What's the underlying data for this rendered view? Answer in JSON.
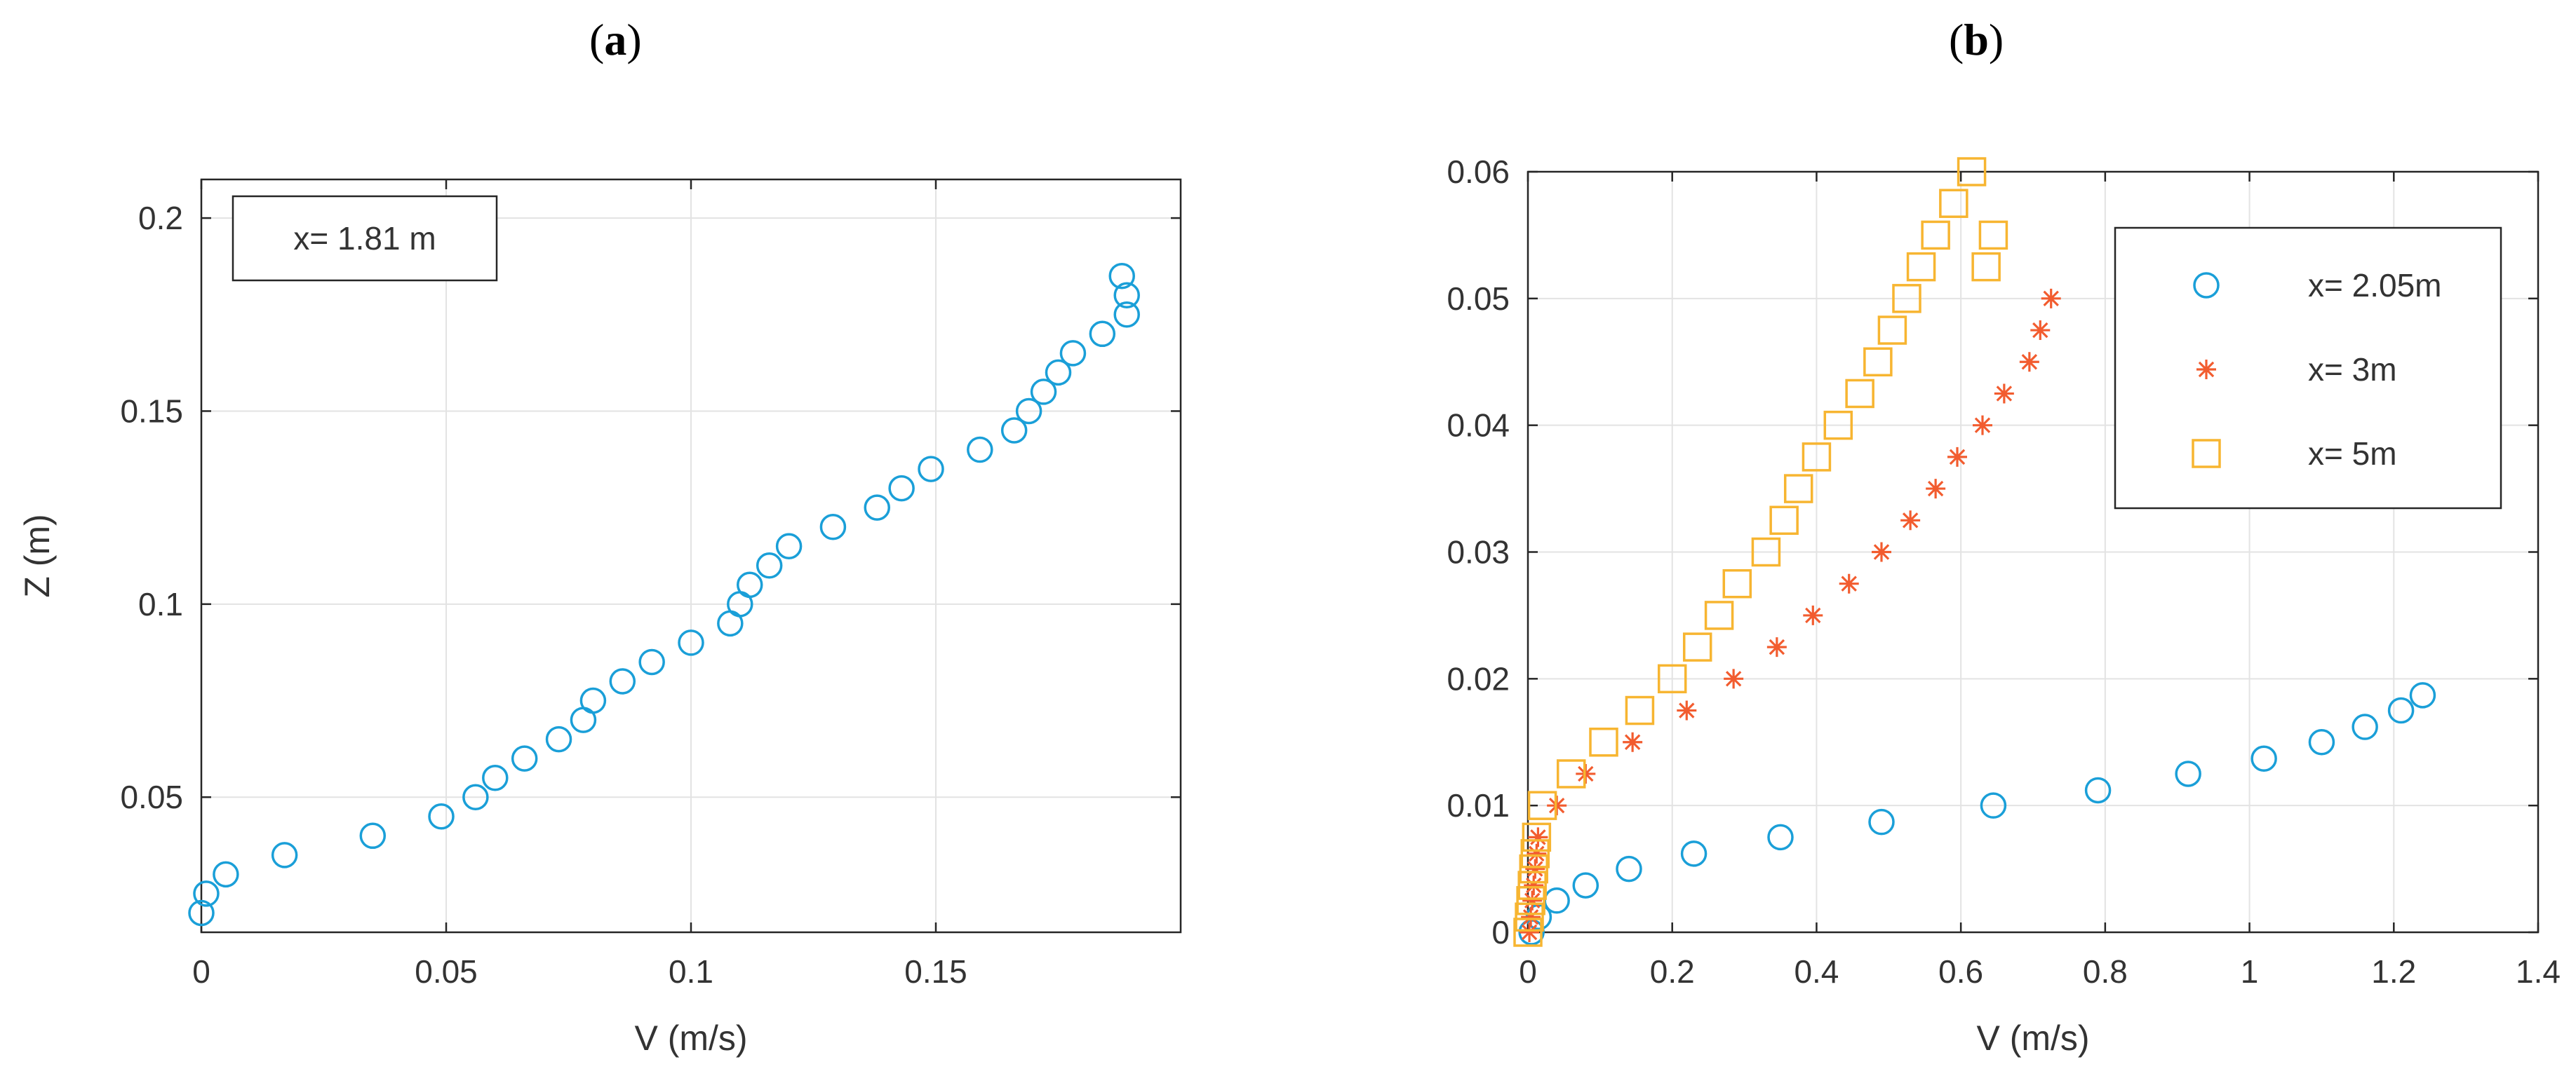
{
  "panels": {
    "a": {
      "label": "a"
    },
    "b": {
      "label": "b"
    }
  },
  "colors": {
    "series_blue": "#1a9fd8",
    "series_red": "#f25c2f",
    "series_yellow": "#f7b531",
    "grid": "#e3e3e3",
    "axis": "#262626"
  },
  "chart_data": [
    {
      "id": "a",
      "type": "scatter",
      "xlabel": "V (m/s)",
      "ylabel": "Z (m)",
      "xlim": [
        0,
        0.2
      ],
      "ylim": [
        0.015,
        0.21
      ],
      "xticks": [
        0,
        0.05,
        0.1,
        0.15
      ],
      "xtick_labels": [
        "0",
        "0.05",
        "0.1",
        "0.15"
      ],
      "yticks": [
        0.05,
        0.1,
        0.15,
        0.2
      ],
      "ytick_labels": [
        "0.05",
        "0.1",
        "0.15",
        "0.2"
      ],
      "grid": true,
      "annotation": "x= 1.81 m",
      "annotation_position": "top-left",
      "series": [
        {
          "marker": "circle",
          "color": "#1a9fd8",
          "x": [
            0.0,
            0.001,
            0.005,
            0.017,
            0.035,
            0.049,
            0.056,
            0.06,
            0.066,
            0.073,
            0.078,
            0.08,
            0.086,
            0.092,
            0.1,
            0.108,
            0.11,
            0.112,
            0.116,
            0.12,
            0.129,
            0.138,
            0.143,
            0.149,
            0.159,
            0.166,
            0.169,
            0.172,
            0.175,
            0.178,
            0.184,
            0.188,
            0.189,
            0.189
          ],
          "y": [
            0.02,
            0.025,
            0.03,
            0.035,
            0.04,
            0.045,
            0.05,
            0.055,
            0.06,
            0.065,
            0.07,
            0.075,
            0.08,
            0.085,
            0.09,
            0.095,
            0.1,
            0.105,
            0.11,
            0.115,
            0.12,
            0.125,
            0.13,
            0.135,
            0.14,
            0.145,
            0.15,
            0.155,
            0.16,
            0.165,
            0.17,
            0.185,
            0.18,
            0.175
          ]
        }
      ]
    },
    {
      "id": "b",
      "type": "scatter",
      "xlabel": "V (m/s)",
      "ylabel": "",
      "xlim": [
        0,
        1.4
      ],
      "ylim": [
        0,
        0.06
      ],
      "xticks": [
        0,
        0.2,
        0.4,
        0.6,
        0.8,
        1.0,
        1.2,
        1.4
      ],
      "xtick_labels": [
        "0",
        "0.2",
        "0.4",
        "0.6",
        "0.8",
        "1",
        "1.2",
        "1.4"
      ],
      "yticks": [
        0,
        0.01,
        0.02,
        0.03,
        0.04,
        0.05,
        0.06
      ],
      "ytick_labels": [
        "0",
        "0.01",
        "0.02",
        "0.03",
        "0.04",
        "0.05",
        "0.06"
      ],
      "grid": true,
      "legend_position": "top-right",
      "series": [
        {
          "name": "x= 2.05m",
          "marker": "circle",
          "color": "#1a9fd8",
          "x": [
            0.005,
            0.015,
            0.04,
            0.08,
            0.14,
            0.23,
            0.35,
            0.49,
            0.645,
            0.79,
            0.915,
            1.02,
            1.1,
            1.16,
            1.21,
            1.24
          ],
          "y": [
            0.0,
            0.0012,
            0.0025,
            0.0037,
            0.005,
            0.0062,
            0.0075,
            0.0087,
            0.01,
            0.0112,
            0.0125,
            0.0137,
            0.015,
            0.0162,
            0.0175,
            0.0187
          ]
        },
        {
          "name": "x= 3m",
          "marker": "asterisk",
          "color": "#f25c2f",
          "x": [
            0.002,
            0.004,
            0.006,
            0.008,
            0.01,
            0.012,
            0.014,
            0.04,
            0.08,
            0.145,
            0.22,
            0.285,
            0.345,
            0.395,
            0.445,
            0.49,
            0.53,
            0.565,
            0.595,
            0.63,
            0.66,
            0.695,
            0.71,
            0.725
          ],
          "y": [
            0.0,
            0.0012,
            0.0025,
            0.0037,
            0.005,
            0.0062,
            0.0075,
            0.01,
            0.0125,
            0.015,
            0.0175,
            0.02,
            0.0225,
            0.025,
            0.0275,
            0.03,
            0.0325,
            0.035,
            0.0375,
            0.04,
            0.0425,
            0.045,
            0.0475,
            0.05
          ]
        },
        {
          "name": "x= 5m",
          "marker": "square",
          "color": "#f7b531",
          "x": [
            0.0,
            0.002,
            0.004,
            0.006,
            0.008,
            0.01,
            0.012,
            0.02,
            0.06,
            0.105,
            0.155,
            0.2,
            0.235,
            0.265,
            0.29,
            0.33,
            0.355,
            0.375,
            0.4,
            0.43,
            0.46,
            0.485,
            0.505,
            0.525,
            0.545,
            0.565,
            0.59,
            0.615,
            0.635,
            0.645
          ],
          "y": [
            0.0,
            0.0012,
            0.0025,
            0.0037,
            0.005,
            0.0062,
            0.0075,
            0.01,
            0.0125,
            0.015,
            0.0175,
            0.02,
            0.0225,
            0.025,
            0.0275,
            0.03,
            0.0325,
            0.035,
            0.0375,
            0.04,
            0.0425,
            0.045,
            0.0475,
            0.05,
            0.0525,
            0.055,
            0.0575,
            0.06,
            0.0525,
            0.055
          ]
        }
      ]
    }
  ]
}
